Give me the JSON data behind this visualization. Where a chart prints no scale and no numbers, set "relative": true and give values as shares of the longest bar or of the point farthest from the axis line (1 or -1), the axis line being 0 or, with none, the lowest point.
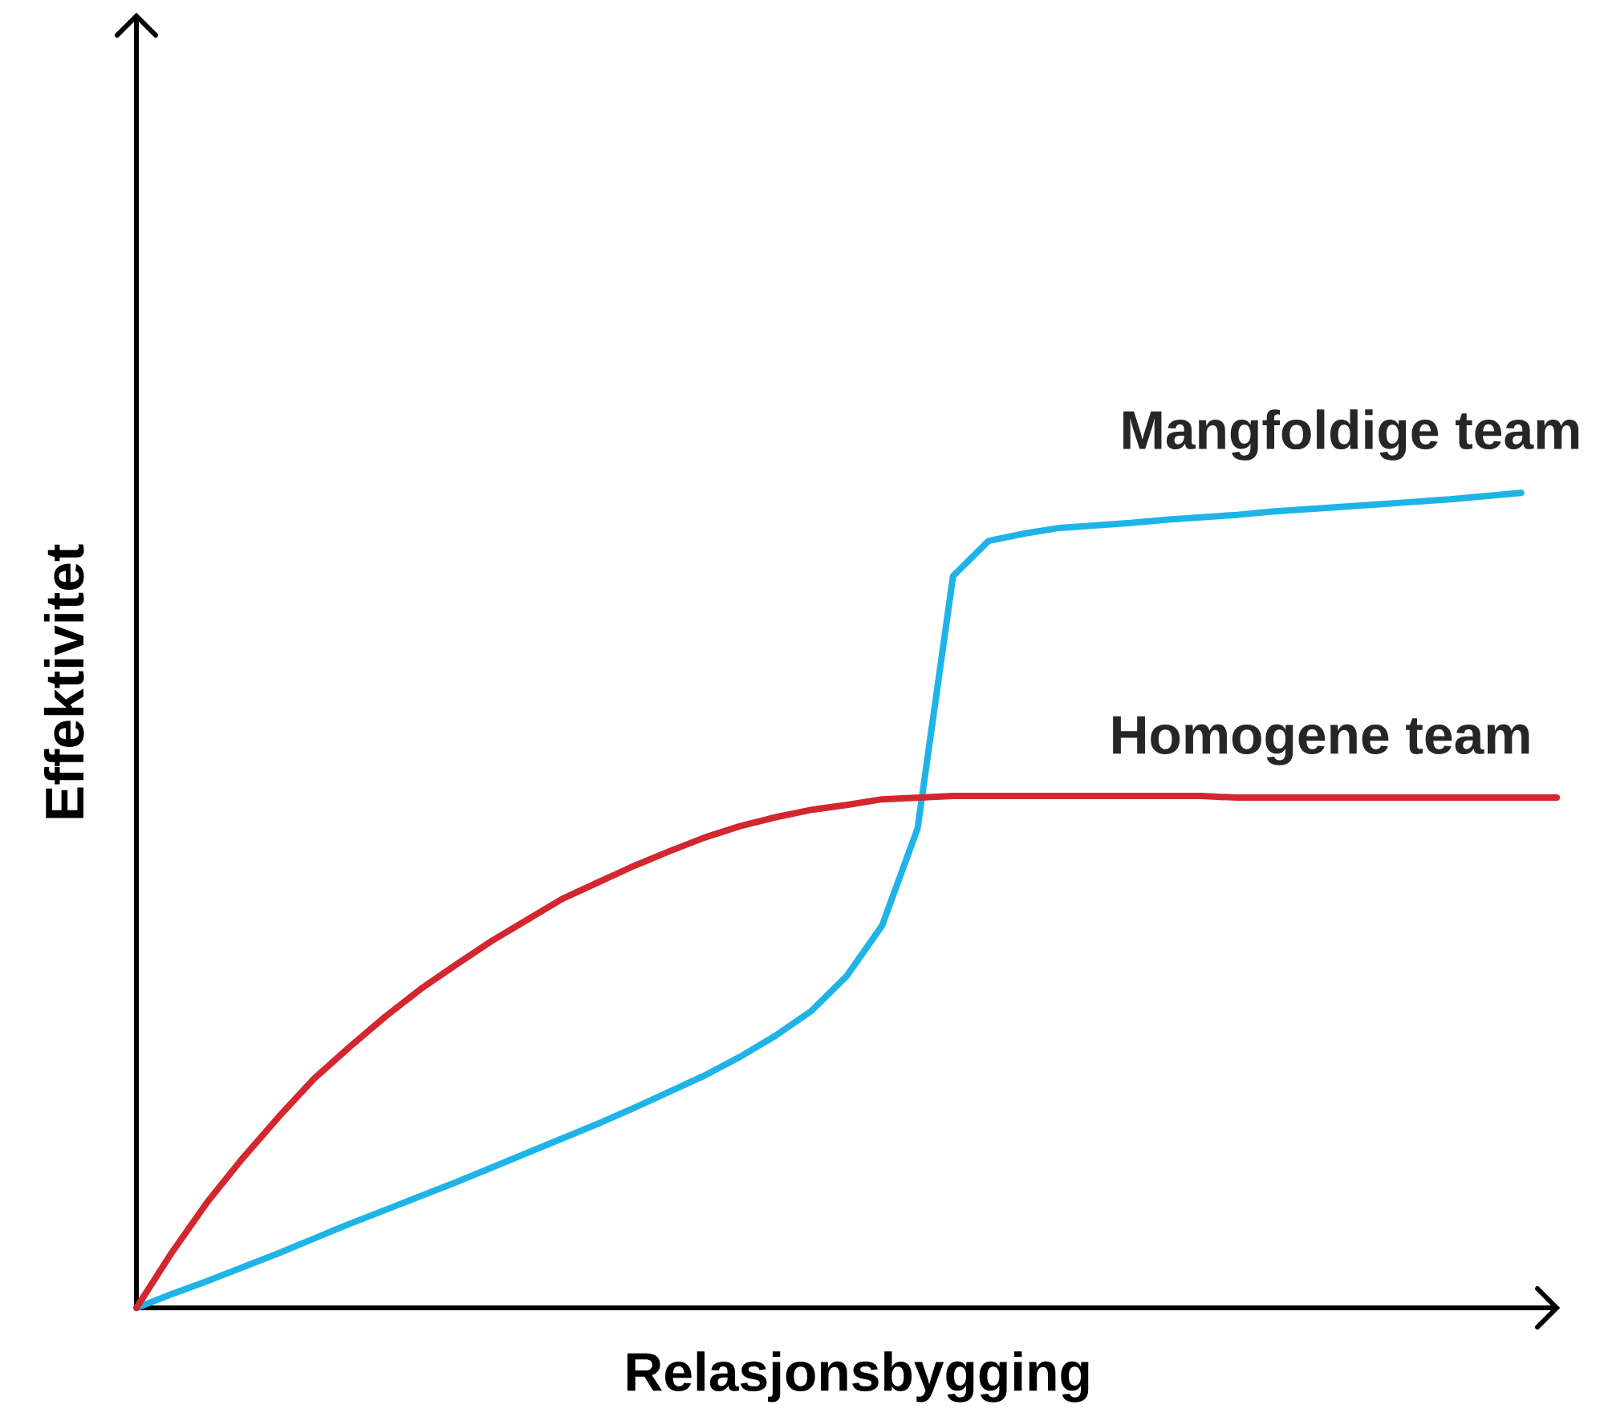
{
  "chart_data": {
    "type": "line",
    "xlabel": "Relasjonsbygging",
    "ylabel": "Effektivitet",
    "relative": true,
    "marker": "none",
    "line_style": "solid",
    "categories": [
      null,
      null,
      null,
      null,
      null,
      null,
      null,
      null,
      null,
      null,
      null,
      null,
      null,
      null,
      null,
      null,
      null,
      null,
      null,
      null,
      null,
      null,
      null,
      null,
      null,
      null,
      null,
      null,
      null,
      null,
      null,
      null,
      null,
      null,
      null,
      null,
      null,
      null,
      null,
      null,
      null
    ],
    "series": [
      {
        "name": "Mangfoldige team",
        "color": "#1eb4e8",
        "values": [
          0,
          0.017,
          0.033,
          0.05,
          0.067,
          0.085,
          0.103,
          0.12,
          0.137,
          0.154,
          0.172,
          0.19,
          0.208,
          0.226,
          0.245,
          0.265,
          0.285,
          0.308,
          0.334,
          0.364,
          0.407,
          0.469,
          0.588,
          0.898,
          0.941,
          0.95,
          0.957,
          0.96,
          0.963,
          0.967,
          0.97,
          0.973,
          0.977,
          0.98,
          0.983,
          0.986,
          0.989,
          0.992,
          0.996,
          1,
          null
        ]
      },
      {
        "name": "Homogene team",
        "color": "#d4262e",
        "values": [
          0,
          0.068,
          0.13,
          0.184,
          0.234,
          0.281,
          0.32,
          0.357,
          0.391,
          0.421,
          0.45,
          0.476,
          0.502,
          0.522,
          0.542,
          0.56,
          0.577,
          0.591,
          0.602,
          0.611,
          0.617,
          0.624,
          0.626,
          0.628,
          0.628,
          0.628,
          0.628,
          0.628,
          0.628,
          0.628,
          0.628,
          0.626,
          0.626,
          0.626,
          0.626,
          0.626,
          0.626,
          0.626,
          0.626,
          0.626,
          0.626
        ]
      }
    ]
  }
}
